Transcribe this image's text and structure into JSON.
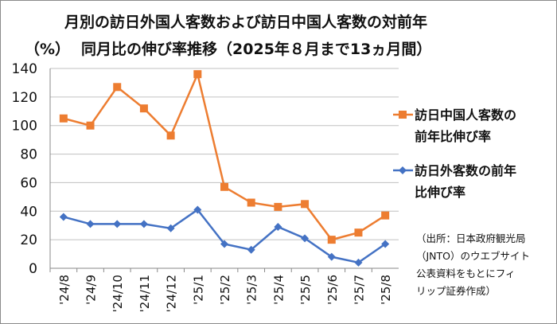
{
  "chart_data": {
    "type": "line",
    "title": "月別の訪日外国人客数および訪日中国人客数の対前年同月比の伸び率推移（2025年８月まで13ヵ月間）",
    "title_lines": [
      "月別の訪日外国人客数および訪日中国人客数の対前年",
      "同月比の伸び率推移（2025年８月まで13ヵ月間）"
    ],
    "ylabel": "（%）",
    "xlabel": "",
    "ylim": [
      0,
      140
    ],
    "yticks": [
      0,
      20,
      40,
      60,
      80,
      100,
      120,
      140
    ],
    "grid": true,
    "legend_position": "right",
    "categories": [
      "'24/8",
      "'24/9",
      "'24/10",
      "'24/11",
      "'24/12",
      "'25/1",
      "'25/2",
      "'25/3",
      "'25/4",
      "'25/5",
      "'25/6",
      "'25/7",
      "'25/8"
    ],
    "series": [
      {
        "name": "訪日中国人客数の前年比伸び率",
        "legend_lines": [
          "訪日中国人客数の",
          "前年比伸び率"
        ],
        "color": "#ED7D31",
        "marker": "square",
        "values": [
          105,
          100,
          127,
          112,
          93,
          136,
          57,
          46,
          43,
          45,
          20,
          25,
          37
        ]
      },
      {
        "name": "訪日外客数の前年比伸び率",
        "legend_lines": [
          "訪日外客数の前年",
          "比伸び率"
        ],
        "color": "#4472C4",
        "marker": "diamond",
        "values": [
          36,
          31,
          31,
          31,
          28,
          41,
          17,
          13,
          29,
          21,
          8,
          4,
          17
        ]
      }
    ],
    "annotation_lines": [
      "（出所：日本政府観光局",
      "（JNTO）のウエブサイト",
      "公表資料をもとにフィ",
      "リップ証券作成）"
    ]
  }
}
